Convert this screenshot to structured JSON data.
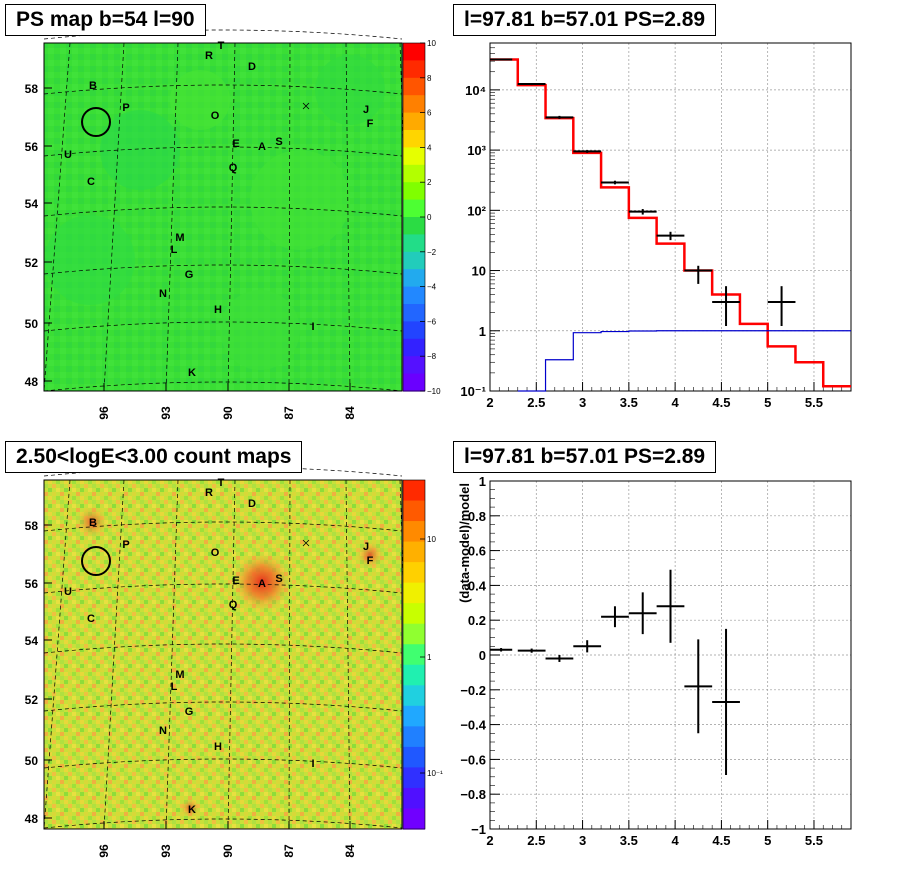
{
  "panels": {
    "ps_map": {
      "title": "PS map b=54 l=90",
      "y_ticks": [
        "48",
        "50",
        "52",
        "54",
        "56",
        "58"
      ],
      "x_ticks": [
        "96",
        "93",
        "90",
        "87",
        "84"
      ],
      "colorbar": {
        "type": "linear",
        "range": [
          -10,
          10
        ],
        "tick_labels": [
          "10",
          "8",
          "6",
          "4",
          "2",
          "0",
          "−2",
          "−4",
          "−6",
          "−8",
          "−10"
        ]
      },
      "source_labels": [
        "T",
        "R",
        "D",
        "B",
        "P",
        "O",
        "J",
        "F",
        "U",
        "E",
        "A",
        "S",
        "Q",
        "C",
        "M",
        "L",
        "G",
        "N",
        "H",
        "I",
        "K"
      ]
    },
    "count_map": {
      "title": "2.50<logE<3.00 count maps",
      "y_ticks": [
        "48",
        "50",
        "52",
        "54",
        "56",
        "58"
      ],
      "x_ticks": [
        "96",
        "93",
        "90",
        "87",
        "84"
      ],
      "colorbar": {
        "type": "log",
        "tick_labels": [
          "10",
          "1",
          "10⁻¹"
        ]
      },
      "source_labels": [
        "T",
        "R",
        "D",
        "B",
        "P",
        "O",
        "J",
        "F",
        "U",
        "E",
        "A",
        "S",
        "Q",
        "C",
        "M",
        "L",
        "G",
        "N",
        "H",
        "I",
        "K"
      ]
    },
    "spectrum": {
      "title": "l=97.81 b=57.01 PS=2.89"
    },
    "residual": {
      "title": "l=97.81 b=57.01 PS=2.89"
    }
  },
  "chart_data": [
    {
      "type": "heatmap",
      "title": "PS map b=54 l=90",
      "xlabel": "",
      "ylabel": "",
      "x_ticks": [
        96,
        93,
        90,
        87,
        84
      ],
      "y_ticks": [
        48,
        50,
        52,
        54,
        56,
        58
      ],
      "colorbar_range": [
        -10,
        10
      ],
      "background_value": 0.5,
      "circled_source": "B"
    },
    {
      "type": "heatmap",
      "title": "2.50<logE<3.00 count maps",
      "xlabel": "",
      "ylabel": "",
      "x_ticks": [
        96,
        93,
        90,
        87,
        84
      ],
      "y_ticks": [
        48,
        50,
        52,
        54,
        56,
        58
      ],
      "colorbar_scale": "log",
      "background_value": 1,
      "bright_spots": [
        "A",
        "B",
        "F"
      ]
    },
    {
      "type": "line",
      "title": "l=97.81 b=57.01 PS=2.89",
      "xlabel": "",
      "ylabel": "",
      "xlim": [
        2,
        5.9
      ],
      "ylim": [
        0.1,
        60000
      ],
      "yscale": "log",
      "x_ticks": [
        2,
        2.5,
        3,
        3.5,
        4,
        4.5,
        5,
        5.5
      ],
      "y_tick_labels": [
        "10⁻¹",
        "1",
        "10",
        "10²",
        "10³",
        "10⁴"
      ],
      "grid": true,
      "series": [
        {
          "style": "step",
          "color": "#ff0000",
          "edges": [
            2.0,
            2.3,
            2.6,
            2.9,
            3.2,
            3.5,
            3.8,
            4.1,
            4.4,
            4.7,
            5.0,
            5.3,
            5.6,
            5.9
          ],
          "values": [
            32000,
            12000,
            3400,
            900,
            240,
            75,
            28,
            10,
            4,
            1.3,
            0.55,
            0.3,
            0.12
          ]
        },
        {
          "style": "step",
          "color": "#0000cc",
          "edges": [
            2.3,
            2.6,
            2.9,
            3.2,
            3.5,
            3.8,
            4.1,
            4.4,
            4.7,
            5.0,
            5.3,
            5.6,
            5.9
          ],
          "values": [
            0.1,
            0.33,
            0.93,
            0.97,
            0.99,
            1.0,
            1.0,
            1.0,
            1.0,
            1.0,
            1.0,
            1.0
          ]
        },
        {
          "style": "errorbar",
          "color": "#000000",
          "points": [
            {
              "x": 2.12,
              "xerr": 0.12,
              "y": 32000,
              "lo": 31000,
              "hi": 33000
            },
            {
              "x": 2.45,
              "xerr": 0.15,
              "y": 12500,
              "lo": 12000,
              "hi": 13000
            },
            {
              "x": 2.75,
              "xerr": 0.15,
              "y": 3500,
              "lo": 3300,
              "hi": 3700
            },
            {
              "x": 3.05,
              "xerr": 0.15,
              "y": 950,
              "lo": 900,
              "hi": 1000
            },
            {
              "x": 3.35,
              "xerr": 0.15,
              "y": 290,
              "lo": 270,
              "hi": 310
            },
            {
              "x": 3.65,
              "xerr": 0.15,
              "y": 95,
              "lo": 85,
              "hi": 105
            },
            {
              "x": 3.95,
              "xerr": 0.15,
              "y": 38,
              "lo": 32,
              "hi": 44
            },
            {
              "x": 4.25,
              "xerr": 0.15,
              "y": 10,
              "lo": 6,
              "hi": 12
            },
            {
              "x": 4.55,
              "xerr": 0.15,
              "y": 3,
              "lo": 1.2,
              "hi": 5.5
            },
            {
              "x": 5.15,
              "xerr": 0.15,
              "y": 3,
              "lo": 1.2,
              "hi": 5.5
            }
          ]
        }
      ]
    },
    {
      "type": "scatter",
      "title": "l=97.81 b=57.01 PS=2.89",
      "xlabel": "",
      "ylabel": "(data-model)/model",
      "xlim": [
        2,
        5.9
      ],
      "ylim": [
        -1,
        1
      ],
      "x_ticks": [
        2,
        2.5,
        3,
        3.5,
        4,
        4.5,
        5,
        5.5
      ],
      "y_ticks": [
        -1,
        -0.8,
        -0.6,
        -0.4,
        -0.2,
        0,
        0.2,
        0.4,
        0.6,
        0.8,
        1
      ],
      "grid": true,
      "points": [
        {
          "x": 2.12,
          "xerr": 0.12,
          "y": 0.03,
          "yerr": 0.01
        },
        {
          "x": 2.45,
          "xerr": 0.15,
          "y": 0.025,
          "yerr": 0.012
        },
        {
          "x": 2.75,
          "xerr": 0.15,
          "y": -0.02,
          "yerr": 0.02
        },
        {
          "x": 3.05,
          "xerr": 0.15,
          "y": 0.05,
          "yerr": 0.035
        },
        {
          "x": 3.35,
          "xerr": 0.15,
          "y": 0.22,
          "yerr": 0.06
        },
        {
          "x": 3.65,
          "xerr": 0.15,
          "y": 0.24,
          "yerr": 0.12
        },
        {
          "x": 3.95,
          "xerr": 0.15,
          "y": 0.28,
          "yerr": 0.21
        },
        {
          "x": 4.25,
          "xerr": 0.15,
          "y": -0.18,
          "yerr": 0.27
        },
        {
          "x": 4.55,
          "xerr": 0.15,
          "y": -0.27,
          "yerr": 0.42
        }
      ]
    }
  ]
}
